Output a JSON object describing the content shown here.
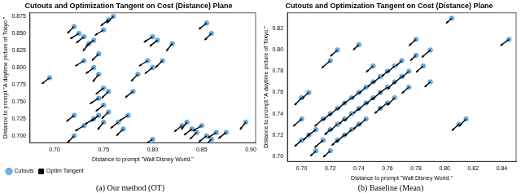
{
  "chart_data": [
    {
      "type": "scatter",
      "title": "Cutouts and Optimization Tangent on Cost (Distance) Plane",
      "caption": "(a) Our method (OT)",
      "x_label": "Distance to prompt \"Walt Disney World.\"",
      "y_label": "Distance to prompt \"A daytime picture of Tokyo.\"",
      "xlim": [
        0.675,
        0.905
      ],
      "ylim": [
        0.69,
        0.88
      ],
      "xticks": [
        {
          "value": 0.7,
          "label": "0.70"
        },
        0.75,
        {
          "value": 0.8,
          "label": "0.80"
        },
        0.85,
        {
          "value": 0.9,
          "label": "0.90"
        }
      ],
      "yticks": [
        {
          "value": 0.7,
          "label": "0.700"
        },
        0.725,
        {
          "value": 0.75,
          "label": "0.750"
        },
        0.775,
        {
          "value": 0.8,
          "label": "0.800"
        },
        0.825,
        {
          "value": 0.85,
          "label": "0.850"
        },
        0.875
      ],
      "grid": false,
      "legend": "bottom",
      "series": [
        {
          "name": "Cutouts",
          "color": "#6fb1e4",
          "marker": "circle",
          "x": [
            0.695,
            0.72,
            0.725,
            0.73,
            0.735,
            0.74,
            0.745,
            0.75,
            0.755,
            0.76,
            0.73,
            0.74,
            0.745,
            0.75,
            0.755,
            0.745,
            0.75,
            0.755,
            0.74,
            0.745,
            0.75,
            0.765,
            0.77,
            0.775,
            0.78,
            0.785,
            0.8,
            0.805,
            0.82,
            0.855,
            0.86,
            0.795,
            0.8,
            0.81,
            0.8,
            0.83,
            0.835,
            0.84,
            0.845,
            0.85,
            0.855,
            0.86,
            0.865,
            0.875,
            0.895,
            0.72,
            0.72,
            0.73
          ],
          "y": [
            0.785,
            0.86,
            0.85,
            0.845,
            0.835,
            0.84,
            0.82,
            0.855,
            0.87,
            0.875,
            0.81,
            0.8,
            0.79,
            0.77,
            0.765,
            0.755,
            0.745,
            0.735,
            0.725,
            0.73,
            0.72,
            0.72,
            0.71,
            0.73,
            0.765,
            0.79,
            0.845,
            0.84,
            0.835,
            0.865,
            0.85,
            0.81,
            0.8,
            0.81,
            0.695,
            0.715,
            0.72,
            0.71,
            0.705,
            0.715,
            0.7,
            0.695,
            0.705,
            0.705,
            0.72,
            0.73,
            0.7,
            0.715
          ]
        },
        {
          "name": "Optim Tangent",
          "color": "#000000",
          "type": "arrow",
          "dx": [
            -0.008,
            -0.007,
            -0.009,
            -0.008,
            -0.006,
            -0.008,
            -0.007,
            -0.009,
            -0.008,
            -0.007,
            -0.009,
            -0.008,
            -0.006,
            -0.008,
            -0.007,
            -0.009,
            -0.008,
            -0.007,
            -0.009,
            -0.008,
            -0.006,
            -0.008,
            -0.007,
            -0.009,
            -0.008,
            -0.007,
            -0.009,
            -0.008,
            -0.006,
            -0.008,
            -0.007,
            -0.009,
            -0.008,
            -0.007,
            -0.009,
            -0.008,
            -0.006,
            -0.008,
            -0.007,
            -0.009,
            -0.008,
            -0.007,
            -0.009,
            -0.008,
            -0.006,
            -0.008,
            -0.007,
            -0.009
          ],
          "dy": [
            -0.009,
            -0.01,
            -0.008,
            -0.009,
            -0.011,
            -0.009,
            -0.01,
            -0.008,
            -0.009,
            -0.01,
            -0.008,
            -0.009,
            -0.011,
            -0.009,
            -0.01,
            -0.008,
            -0.009,
            -0.01,
            -0.008,
            -0.009,
            -0.011,
            -0.009,
            -0.01,
            -0.008,
            -0.009,
            -0.01,
            -0.008,
            -0.009,
            -0.011,
            -0.009,
            -0.01,
            -0.008,
            -0.009,
            -0.01,
            -0.008,
            -0.009,
            -0.011,
            -0.009,
            -0.01,
            -0.008,
            -0.009,
            -0.01,
            -0.008,
            -0.009,
            -0.011,
            -0.009,
            -0.01,
            -0.008
          ]
        }
      ]
    },
    {
      "type": "scatter",
      "title": "Cutouts and Optimization Tangent on Cost (Distance) Plane",
      "caption": "(b) Baseline (Mean)",
      "x_label": "Distance to prompt \"Walt Disney World.\"",
      "y_label": "Distance to prompt \"A daytime picture of Tokyo.\"",
      "xlim": [
        0.69,
        0.85
      ],
      "ylim": [
        0.695,
        0.835
      ],
      "xticks": [
        {
          "value": 0.7,
          "label": "0.70"
        },
        0.72,
        0.74,
        0.76,
        0.78,
        {
          "value": 0.8,
          "label": "0.80"
        },
        0.82,
        0.84
      ],
      "yticks": [
        {
          "value": 0.7,
          "label": "0.70"
        },
        0.72,
        0.74,
        0.76,
        0.78,
        {
          "value": 0.8,
          "label": "0.80"
        },
        0.82
      ],
      "grid": false,
      "series": [
        {
          "color": "#6fb1e4",
          "marker": "circle",
          "x": [
            0.7,
            0.705,
            0.71,
            0.7,
            0.705,
            0.71,
            0.715,
            0.72,
            0.72,
            0.725,
            0.725,
            0.73,
            0.73,
            0.735,
            0.735,
            0.74,
            0.74,
            0.745,
            0.745,
            0.75,
            0.75,
            0.755,
            0.755,
            0.76,
            0.76,
            0.765,
            0.765,
            0.77,
            0.77,
            0.775,
            0.78,
            0.785,
            0.79,
            0.78,
            0.805,
            0.845,
            0.815,
            0.81,
            0.725,
            0.73,
            0.735,
            0.74,
            0.745,
            0.715,
            0.72,
            0.755,
            0.76,
            0.765,
            0.775,
            0.79,
            0.72,
            0.725,
            0.74,
            0.75,
            0.7
          ],
          "y": [
            0.715,
            0.72,
            0.725,
            0.755,
            0.76,
            0.705,
            0.735,
            0.74,
            0.725,
            0.73,
            0.745,
            0.75,
            0.735,
            0.755,
            0.74,
            0.76,
            0.745,
            0.75,
            0.765,
            0.77,
            0.755,
            0.76,
            0.775,
            0.78,
            0.765,
            0.77,
            0.785,
            0.79,
            0.775,
            0.78,
            0.795,
            0.785,
            0.8,
            0.81,
            0.83,
            0.81,
            0.735,
            0.73,
            0.715,
            0.72,
            0.725,
            0.73,
            0.735,
            0.715,
            0.705,
            0.745,
            0.75,
            0.755,
            0.765,
            0.77,
            0.79,
            0.8,
            0.805,
            0.785,
            0.735
          ]
        },
        {
          "color": "#000000",
          "type": "arrow",
          "dx": [
            -0.005,
            -0.004,
            -0.006,
            -0.005,
            -0.005,
            -0.004,
            -0.006,
            -0.005,
            -0.004,
            -0.005,
            -0.006,
            -0.005,
            -0.004,
            -0.006,
            -0.005,
            -0.005,
            -0.004,
            -0.006,
            -0.005,
            -0.004,
            -0.005,
            -0.006,
            -0.005,
            -0.004,
            -0.006,
            -0.005,
            -0.005,
            -0.004,
            -0.006,
            -0.005,
            -0.004,
            -0.005,
            -0.006,
            -0.005,
            -0.004,
            -0.006,
            -0.005,
            -0.005,
            -0.004,
            -0.006,
            -0.005,
            -0.004,
            -0.005,
            -0.006,
            -0.005,
            -0.004,
            -0.006,
            -0.005,
            -0.005,
            -0.004,
            -0.006,
            -0.005,
            -0.004,
            -0.005,
            -0.006
          ],
          "dy": [
            -0.006,
            -0.005,
            -0.006,
            -0.007,
            -0.006,
            -0.005,
            -0.007,
            -0.006,
            -0.005,
            -0.006,
            -0.007,
            -0.006,
            -0.005,
            -0.006,
            -0.007,
            -0.006,
            -0.005,
            -0.007,
            -0.006,
            -0.005,
            -0.006,
            -0.007,
            -0.006,
            -0.005,
            -0.006,
            -0.007,
            -0.006,
            -0.005,
            -0.007,
            -0.006,
            -0.005,
            -0.006,
            -0.007,
            -0.006,
            -0.005,
            -0.006,
            -0.007,
            -0.006,
            -0.005,
            -0.007,
            -0.006,
            -0.005,
            -0.006,
            -0.007,
            -0.006,
            -0.005,
            -0.006,
            -0.007,
            -0.006,
            -0.005,
            -0.007,
            -0.006,
            -0.005,
            -0.006,
            -0.007
          ]
        }
      ]
    }
  ]
}
